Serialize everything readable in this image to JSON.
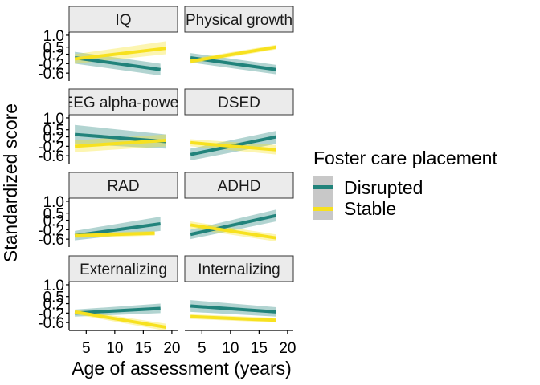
{
  "chart_data": {
    "type": "line",
    "xlabel": "Age of assessment (years)",
    "ylabel": "Standardized score",
    "xlim": [
      2,
      21
    ],
    "ylim": [
      -0.9,
      1.1
    ],
    "x_ticks": [
      5,
      10,
      15,
      20
    ],
    "y_ticks": [
      1.0,
      0.5,
      0.2,
      -0.2,
      -0.6
    ],
    "y_tick_labels": [
      "1.0",
      "0.5",
      "0.2",
      "-0.2",
      "-0.6"
    ],
    "legend": {
      "title": "Foster care placement",
      "position": "right",
      "entries": [
        {
          "name": "Disrupted",
          "color": "#21837b"
        },
        {
          "name": "Stable",
          "color": "#f7e11f"
        }
      ]
    },
    "colors": {
      "Disrupted": "#21837b",
      "Stable": "#f7e11f"
    },
    "panels": [
      {
        "label": "IQ",
        "series": [
          {
            "name": "Disrupted",
            "x": [
              3,
              18
            ],
            "y": [
              0.05,
              -0.45
            ],
            "lower": [
              -0.2,
              -0.7
            ],
            "upper": [
              0.3,
              -0.2
            ]
          },
          {
            "name": "Stable",
            "x": [
              3,
              19
            ],
            "y": [
              0.0,
              0.45
            ],
            "lower": [
              -0.2,
              0.2
            ],
            "upper": [
              0.2,
              0.75
            ]
          }
        ]
      },
      {
        "label": "Physical growth",
        "series": [
          {
            "name": "Disrupted",
            "x": [
              3,
              18
            ],
            "y": [
              0.05,
              -0.45
            ],
            "lower": [
              -0.15,
              -0.65
            ],
            "upper": [
              0.25,
              -0.25
            ]
          },
          {
            "name": "Stable",
            "x": [
              3,
              18
            ],
            "y": [
              -0.1,
              0.5
            ],
            "lower": [
              -0.2,
              0.4
            ],
            "upper": [
              0.0,
              0.6
            ]
          }
        ]
      },
      {
        "label": "EEG alpha-power",
        "series": [
          {
            "name": "Disrupted",
            "x": [
              3,
              19
            ],
            "y": [
              0.3,
              0.0
            ],
            "lower": [
              -0.1,
              -0.3
            ],
            "upper": [
              0.7,
              0.3
            ]
          },
          {
            "name": "Stable",
            "x": [
              3,
              19
            ],
            "y": [
              -0.2,
              0.05
            ],
            "lower": [
              -0.45,
              -0.2
            ],
            "upper": [
              0.05,
              0.3
            ]
          }
        ]
      },
      {
        "label": "DSED",
        "series": [
          {
            "name": "Disrupted",
            "x": [
              3,
              18
            ],
            "y": [
              -0.55,
              0.2
            ],
            "lower": [
              -0.8,
              -0.1
            ],
            "upper": [
              -0.3,
              0.45
            ]
          },
          {
            "name": "Stable",
            "x": [
              3,
              18
            ],
            "y": [
              -0.05,
              -0.35
            ],
            "lower": [
              -0.2,
              -0.55
            ],
            "upper": [
              0.1,
              -0.15
            ]
          }
        ]
      },
      {
        "label": "RAD",
        "series": [
          {
            "name": "Disrupted",
            "x": [
              3,
              18
            ],
            "y": [
              -0.45,
              0.05
            ],
            "lower": [
              -0.65,
              -0.25
            ],
            "upper": [
              -0.25,
              0.35
            ]
          },
          {
            "name": "Stable",
            "x": [
              3,
              17
            ],
            "y": [
              -0.45,
              -0.35
            ],
            "lower": [
              -0.55,
              -0.45
            ],
            "upper": [
              -0.35,
              -0.25
            ]
          }
        ]
      },
      {
        "label": "ADHD",
        "series": [
          {
            "name": "Disrupted",
            "x": [
              3,
              18
            ],
            "y": [
              -0.4,
              0.4
            ],
            "lower": [
              -0.6,
              0.15
            ],
            "upper": [
              -0.2,
              0.65
            ]
          },
          {
            "name": "Stable",
            "x": [
              3,
              18
            ],
            "y": [
              0.0,
              -0.55
            ],
            "lower": [
              -0.15,
              -0.7
            ],
            "upper": [
              0.15,
              -0.4
            ]
          }
        ]
      },
      {
        "label": "Externalizing",
        "series": [
          {
            "name": "Disrupted",
            "x": [
              3,
              18
            ],
            "y": [
              -0.2,
              0.0
            ],
            "lower": [
              -0.35,
              -0.2
            ],
            "upper": [
              -0.05,
              0.2
            ]
          },
          {
            "name": "Stable",
            "x": [
              3,
              19
            ],
            "y": [
              -0.15,
              -0.8
            ],
            "lower": [
              -0.25,
              -0.95
            ],
            "upper": [
              -0.05,
              -0.65
            ]
          }
        ]
      },
      {
        "label": "Internalizing",
        "series": [
          {
            "name": "Disrupted",
            "x": [
              3,
              18
            ],
            "y": [
              0.1,
              -0.15
            ],
            "lower": [
              -0.15,
              -0.35
            ],
            "upper": [
              0.35,
              0.05
            ]
          },
          {
            "name": "Stable",
            "x": [
              3,
              18
            ],
            "y": [
              -0.35,
              -0.5
            ],
            "lower": [
              -0.45,
              -0.6
            ],
            "upper": [
              -0.25,
              -0.4
            ]
          }
        ]
      }
    ]
  }
}
